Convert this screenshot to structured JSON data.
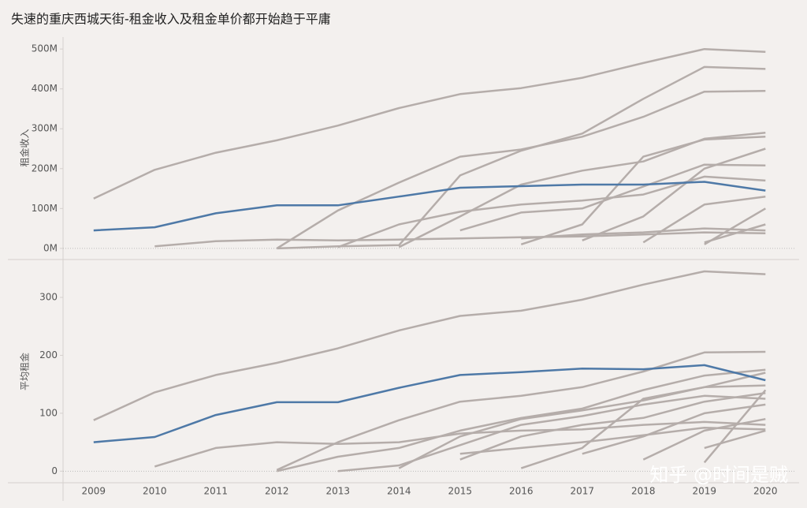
{
  "watermark": "知乎 @时间是贼",
  "chart_data": [
    {
      "type": "line",
      "title": "失速的重庆西城天街-租金收入及租金单价都开始趋于平庸",
      "y_label": "租金收入",
      "x": [
        2009,
        2010,
        2011,
        2012,
        2013,
        2014,
        2015,
        2016,
        2017,
        2018,
        2019,
        2020
      ],
      "xlim": [
        2008.5,
        2020.5
      ],
      "ylim": [
        -26,
        530
      ],
      "yticks": [
        {
          "value": 0,
          "label": "0M"
        },
        {
          "value": 100,
          "label": "100M"
        },
        {
          "value": 200,
          "label": "200M"
        },
        {
          "value": 300,
          "label": "300M"
        },
        {
          "value": 400,
          "label": "400M"
        },
        {
          "value": 500,
          "label": "500M"
        }
      ],
      "zero_line": true,
      "series": [
        {
          "color": "#b5adaa",
          "values": [
            125,
            197,
            240,
            271,
            308,
            352,
            387,
            402,
            428,
            465,
            500,
            493
          ]
        },
        {
          "color": "#b5adaa",
          "values": [
            null,
            5,
            18,
            22,
            20,
            22,
            25,
            28,
            30,
            35,
            40,
            38
          ]
        },
        {
          "color": "#b5adaa",
          "values": [
            null,
            null,
            null,
            0,
            95,
            165,
            230,
            248,
            280,
            330,
            393,
            395
          ]
        },
        {
          "color": "#b5adaa",
          "values": [
            null,
            null,
            null,
            0,
            5,
            8,
            183,
            245,
            288,
            375,
            455,
            450
          ]
        },
        {
          "color": "#b5adaa",
          "values": [
            null,
            null,
            null,
            null,
            3,
            60,
            92,
            110,
            120,
            135,
            180,
            170
          ]
        },
        {
          "color": "#b5adaa",
          "values": [
            null,
            null,
            null,
            null,
            null,
            3,
            80,
            160,
            195,
            218,
            275,
            290
          ]
        },
        {
          "color": "#b5adaa",
          "values": [
            null,
            null,
            null,
            null,
            null,
            null,
            45,
            90,
            100,
            155,
            210,
            208
          ]
        },
        {
          "color": "#b5adaa",
          "values": [
            null,
            null,
            null,
            null,
            null,
            null,
            null,
            10,
            60,
            230,
            273,
            280
          ]
        },
        {
          "color": "#b5adaa",
          "values": [
            null,
            null,
            null,
            null,
            null,
            null,
            null,
            null,
            20,
            80,
            200,
            250
          ]
        },
        {
          "color": "#b5adaa",
          "values": [
            null,
            null,
            null,
            null,
            null,
            null,
            null,
            null,
            null,
            15,
            110,
            130
          ]
        },
        {
          "color": "#b5adaa",
          "values": [
            null,
            null,
            null,
            null,
            null,
            null,
            null,
            null,
            null,
            null,
            10,
            100
          ]
        },
        {
          "color": "#b5adaa",
          "values": [
            null,
            null,
            null,
            null,
            null,
            null,
            null,
            null,
            null,
            null,
            15,
            60
          ]
        },
        {
          "color": "#b5adaa",
          "values": [
            null,
            null,
            null,
            null,
            null,
            null,
            null,
            25,
            35,
            40,
            50,
            45
          ]
        },
        {
          "color": "#4e79a7",
          "values": [
            45,
            53,
            88,
            108,
            108,
            130,
            152,
            156,
            160,
            160,
            167,
            145
          ]
        }
      ]
    },
    {
      "type": "line",
      "y_label": "平均租金",
      "x": [
        2009,
        2010,
        2011,
        2012,
        2013,
        2014,
        2015,
        2016,
        2017,
        2018,
        2019,
        2020
      ],
      "xlim": [
        2008.5,
        2020.5
      ],
      "ylim": [
        -20,
        364
      ],
      "yticks": [
        0,
        100,
        200,
        300
      ],
      "zero_line": true,
      "series": [
        {
          "color": "#b5adaa",
          "values": [
            88,
            136,
            166,
            187,
            212,
            243,
            268,
            277,
            296,
            322,
            345,
            340
          ]
        },
        {
          "color": "#b5adaa",
          "values": [
            null,
            8,
            40,
            50,
            47,
            50,
            65,
            70,
            72,
            80,
            85,
            80
          ]
        },
        {
          "color": "#b5adaa",
          "values": [
            null,
            null,
            null,
            2,
            50,
            88,
            120,
            130,
            145,
            172,
            205,
            206
          ]
        },
        {
          "color": "#b5adaa",
          "values": [
            null,
            null,
            null,
            0,
            25,
            40,
            70,
            92,
            108,
            140,
            165,
            175
          ]
        },
        {
          "color": "#b5adaa",
          "values": [
            null,
            null,
            null,
            null,
            0,
            10,
            45,
            80,
            95,
            115,
            130,
            125
          ]
        },
        {
          "color": "#b5adaa",
          "values": [
            null,
            null,
            null,
            null,
            null,
            5,
            60,
            90,
            105,
            122,
            145,
            148
          ]
        },
        {
          "color": "#b5adaa",
          "values": [
            null,
            null,
            null,
            null,
            null,
            null,
            20,
            60,
            80,
            92,
            120,
            135
          ]
        },
        {
          "color": "#b5adaa",
          "values": [
            null,
            null,
            null,
            null,
            null,
            null,
            null,
            5,
            40,
            125,
            145,
            170
          ]
        },
        {
          "color": "#b5adaa",
          "values": [
            null,
            null,
            null,
            null,
            null,
            null,
            null,
            null,
            30,
            60,
            100,
            115
          ]
        },
        {
          "color": "#b5adaa",
          "values": [
            null,
            null,
            null,
            null,
            null,
            null,
            null,
            null,
            null,
            20,
            70,
            90
          ]
        },
        {
          "color": "#b5adaa",
          "values": [
            null,
            null,
            null,
            null,
            null,
            null,
            null,
            null,
            null,
            null,
            15,
            140
          ]
        },
        {
          "color": "#b5adaa",
          "values": [
            null,
            null,
            null,
            null,
            null,
            null,
            null,
            null,
            null,
            null,
            40,
            70
          ]
        },
        {
          "color": "#b5adaa",
          "values": [
            null,
            null,
            null,
            null,
            null,
            null,
            30,
            40,
            50,
            62,
            75,
            72
          ]
        },
        {
          "color": "#4e79a7",
          "values": [
            50,
            59,
            97,
            119,
            119,
            144,
            166,
            171,
            177,
            176,
            183,
            157
          ]
        }
      ]
    }
  ]
}
